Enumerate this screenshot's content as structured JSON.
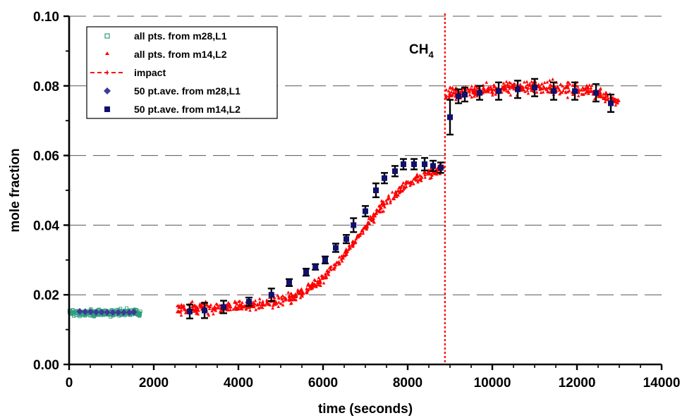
{
  "chart_data": {
    "type": "scatter",
    "xlabel": "time (seconds)",
    "ylabel": "mole fraction",
    "xlim": [
      0,
      14000
    ],
    "ylim": [
      0,
      0.1
    ],
    "xticks": [
      "0",
      "2000",
      "4000",
      "6000",
      "8000",
      "10000",
      "12000",
      "14000"
    ],
    "yticks": [
      "0.00",
      "0.02",
      "0.04",
      "0.06",
      "0.08",
      "0.10"
    ],
    "grid": "horizontal dashed",
    "legend_position": "top-left",
    "annotations": [
      {
        "text": "CH",
        "subscript": "4",
        "x": 8600,
        "y": 0.091
      }
    ],
    "impact_line": {
      "name": "impact",
      "x": 8880,
      "color": "#ff0000"
    },
    "series": [
      {
        "name": "all pts. from m28,L1",
        "marker": "open-square",
        "color": "#2e9e7a",
        "x_range": [
          0,
          1700
        ],
        "y_center": 0.0148,
        "y_spread": 0.0012
      },
      {
        "name": "all pts. from m14,L2",
        "marker": "triangle",
        "color": "#ff0000",
        "segments": [
          {
            "x_range": [
              2550,
              3800
            ],
            "y_start": 0.0158,
            "y_end": 0.0165,
            "spread": 0.0022
          },
          {
            "x_range": [
              3800,
              8880
            ],
            "y_start": 0.0165,
            "y_end": 0.056,
            "spread": 0.0018
          },
          {
            "x_range": [
              8880,
              13000
            ],
            "y_start": 0.077,
            "y_end": 0.076,
            "spread": 0.0022
          }
        ]
      },
      {
        "name": "impact",
        "marker": "dashed-line",
        "color": "#ff0000"
      },
      {
        "name": "50 pt.ave. from m28,L1",
        "marker": "diamond",
        "color": "#3b3b9a",
        "points": [
          [
            250,
            0.0152
          ],
          [
            380,
            0.0151
          ],
          [
            510,
            0.0151
          ],
          [
            640,
            0.015
          ],
          [
            770,
            0.015
          ],
          [
            900,
            0.015
          ],
          [
            1030,
            0.0149
          ],
          [
            1160,
            0.0149
          ],
          [
            1290,
            0.0149
          ],
          [
            1420,
            0.0149
          ],
          [
            1530,
            0.015
          ]
        ]
      },
      {
        "name": "50 pt.ave. from m14,L2",
        "marker": "filled-square",
        "color": "#10106e",
        "points": [
          [
            2850,
            0.0152,
            0.002
          ],
          [
            3200,
            0.0155,
            0.0022
          ],
          [
            3650,
            0.0165,
            0.0018
          ],
          [
            4250,
            0.018,
            0.0012
          ],
          [
            4780,
            0.02,
            0.0018
          ],
          [
            5200,
            0.0235,
            0.001
          ],
          [
            5600,
            0.0265,
            0.001
          ],
          [
            5820,
            0.028,
            0.0008
          ],
          [
            6050,
            0.03,
            0.001
          ],
          [
            6300,
            0.0335,
            0.0012
          ],
          [
            6550,
            0.036,
            0.0012
          ],
          [
            6720,
            0.04,
            0.002
          ],
          [
            7000,
            0.044,
            0.0015
          ],
          [
            7250,
            0.05,
            0.002
          ],
          [
            7450,
            0.0535,
            0.0015
          ],
          [
            7700,
            0.0555,
            0.0015
          ],
          [
            7900,
            0.0575,
            0.0015
          ],
          [
            8150,
            0.0575,
            0.0015
          ],
          [
            8400,
            0.0575,
            0.0018
          ],
          [
            8600,
            0.057,
            0.0015
          ],
          [
            8780,
            0.0565,
            0.0015
          ],
          [
            9000,
            0.071,
            0.005
          ],
          [
            9200,
            0.077,
            0.002
          ],
          [
            9350,
            0.0775,
            0.002
          ],
          [
            9700,
            0.078,
            0.002
          ],
          [
            10150,
            0.0785,
            0.0025
          ],
          [
            10600,
            0.079,
            0.0025
          ],
          [
            11000,
            0.0795,
            0.0025
          ],
          [
            11450,
            0.0785,
            0.0025
          ],
          [
            11950,
            0.0785,
            0.0025
          ],
          [
            12450,
            0.078,
            0.0025
          ],
          [
            12800,
            0.075,
            0.0025
          ]
        ]
      }
    ]
  }
}
